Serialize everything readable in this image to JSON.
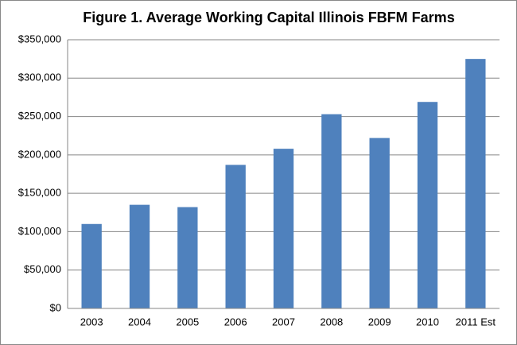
{
  "chart_data": {
    "type": "bar",
    "title": "Figure 1. Average Working Capital Illinois FBFM Farms",
    "categories": [
      "2003",
      "2004",
      "2005",
      "2006",
      "2007",
      "2008",
      "2009",
      "2010",
      "2011 Est"
    ],
    "values": [
      110000,
      135000,
      132000,
      187000,
      208000,
      253000,
      222000,
      269000,
      325000
    ],
    "color": "#4f81bd",
    "ylim": [
      0,
      350000
    ],
    "yticks": [
      {
        "value": 0,
        "label": "$0"
      },
      {
        "value": 50000,
        "label": "$50,000"
      },
      {
        "value": 100000,
        "label": "$100,000"
      },
      {
        "value": 150000,
        "label": "$150,000"
      },
      {
        "value": 200000,
        "label": "$200,000"
      },
      {
        "value": 250000,
        "label": "$250,000"
      },
      {
        "value": 300000,
        "label": "$300,000"
      },
      {
        "value": 350000,
        "label": "$350,000"
      }
    ],
    "grid": true
  }
}
